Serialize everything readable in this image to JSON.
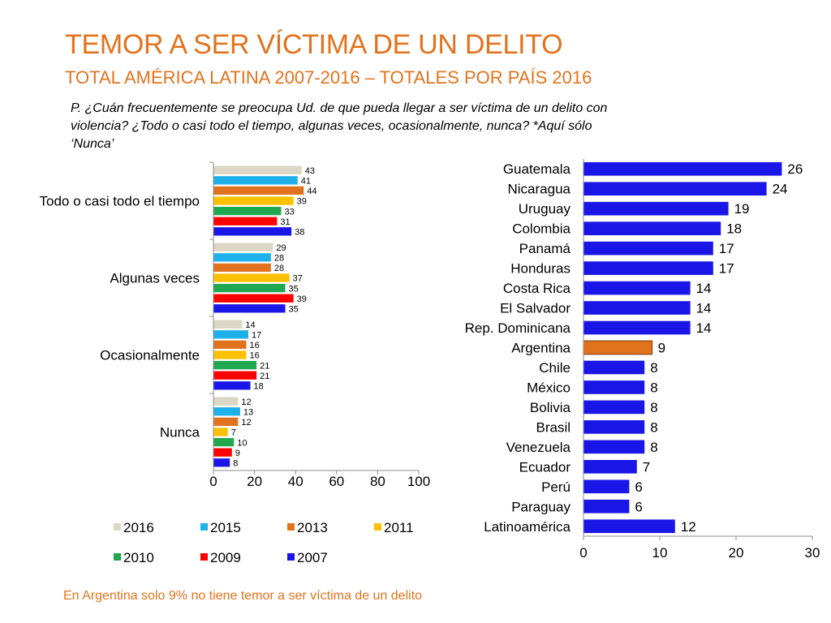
{
  "header": {
    "title": "TEMOR A SER VÍCTIMA DE UN DELITO",
    "subtitle": "TOTAL AMÉRICA LATINA 2007-2016 – TOTALES POR PAÍS 2016",
    "question_line1": "P. ¿Cuán frecuentemente se preocupa Ud. de que pueda llegar a ser víctima de un delito con",
    "question_line2": "violencia? ¿Todo o casi todo el tiempo, algunas veces, ocasionalmente, nunca? *Aquí sólo",
    "question_line3": "‘Nunca’"
  },
  "footer": {
    "note": "En Argentina solo 9% no tiene temor a ser víctima de un delito"
  },
  "colors": {
    "title": "#e2731e",
    "bar_country": "#1a16e8",
    "bar_highlight": "#e2731e"
  },
  "chart_data": [
    {
      "type": "bar",
      "orientation": "horizontal",
      "title": "",
      "categories": [
        "Todo o casi todo el tiempo",
        "Algunas veces",
        "Ocasionalmente",
        "Nunca"
      ],
      "series": [
        {
          "name": "2016",
          "color": "#dcd6c4",
          "values": [
            43,
            29,
            14,
            12
          ]
        },
        {
          "name": "2015",
          "color": "#1eb0ea",
          "values": [
            41,
            28,
            17,
            13
          ]
        },
        {
          "name": "2013",
          "color": "#e2731e",
          "values": [
            44,
            28,
            16,
            12
          ]
        },
        {
          "name": "2011",
          "color": "#ffc000",
          "values": [
            39,
            37,
            16,
            7
          ]
        },
        {
          "name": "2010",
          "color": "#1fa84f",
          "values": [
            33,
            35,
            21,
            10
          ]
        },
        {
          "name": "2009",
          "color": "#ff0000",
          "values": [
            31,
            39,
            21,
            9
          ]
        },
        {
          "name": "2007",
          "color": "#1a16e8",
          "values": [
            38,
            35,
            18,
            8
          ]
        }
      ],
      "xlim": [
        0,
        100
      ],
      "xticks": [
        0,
        20,
        40,
        60,
        80,
        100
      ],
      "legend": "bottom",
      "grid": false
    },
    {
      "type": "bar",
      "orientation": "horizontal",
      "title": "",
      "categories": [
        "Guatemala",
        "Nicaragua",
        "Uruguay",
        "Colombia",
        "Panamá",
        "Honduras",
        "Costa Rica",
        "El Salvador",
        "Rep. Dominicana",
        "Argentina",
        "Chile",
        "México",
        "Bolivia",
        "Brasil",
        "Venezuela",
        "Ecuador",
        "Perú",
        "Paraguay",
        "Latinoamérica"
      ],
      "values": [
        26,
        24,
        19,
        18,
        17,
        17,
        14,
        14,
        14,
        9,
        8,
        8,
        8,
        8,
        8,
        7,
        6,
        6,
        12
      ],
      "highlight": "Argentina",
      "xlim": [
        0,
        30
      ],
      "xticks": [
        0,
        10,
        20,
        30
      ],
      "grid": false
    }
  ]
}
